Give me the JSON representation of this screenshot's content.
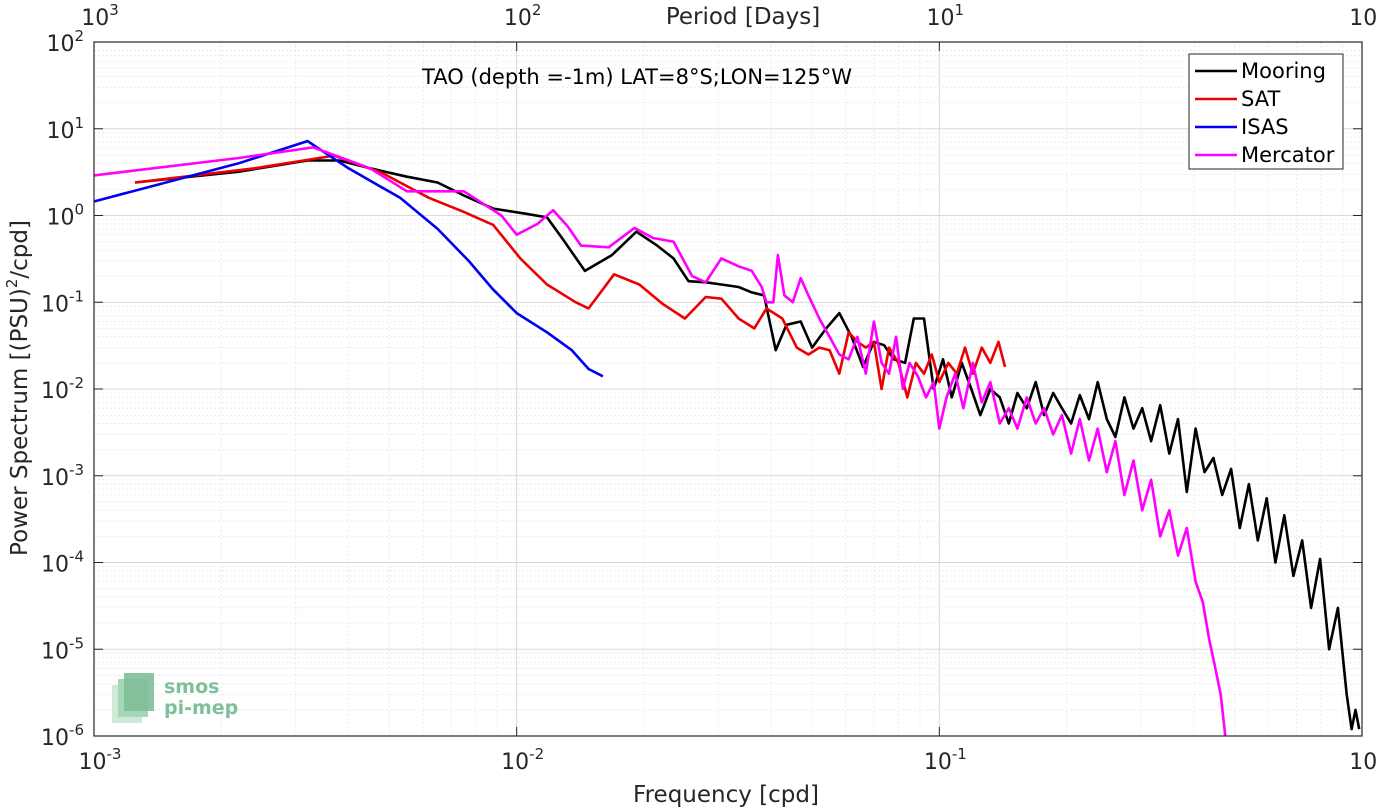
{
  "chart_data": {
    "type": "line",
    "title": "TAO (depth =-1m) LAT=8°S;LON=125°W",
    "xlabel": "Frequency [cpd]",
    "ylabel_main": "Power Spectrum [(PSU)",
    "ylabel_sup": "2",
    "ylabel_tail": "/cpd]",
    "top_xlabel": "Period [Days]",
    "x_scale": "log",
    "y_scale": "log",
    "xlim": [
      0.001,
      1
    ],
    "ylim": [
      1e-06,
      100
    ],
    "grid": true,
    "legend_position": "top-right",
    "x_ticks": [
      {
        "base": "10",
        "exp": "-3",
        "value": 0.001
      },
      {
        "base": "10",
        "exp": "-2",
        "value": 0.01
      },
      {
        "base": "10",
        "exp": "-1",
        "value": 0.1
      },
      {
        "base": "10",
        "exp": "0",
        "value": 1
      }
    ],
    "top_ticks": [
      {
        "base": "10",
        "exp": "3",
        "value": 0.001
      },
      {
        "base": "10",
        "exp": "2",
        "value": 0.01
      },
      {
        "base": "10",
        "exp": "1",
        "value": 0.1
      },
      {
        "base": "10",
        "exp": "0",
        "value": 1
      }
    ],
    "y_ticks": [
      {
        "base": "10",
        "exp": "2",
        "value": 100
      },
      {
        "base": "10",
        "exp": "1",
        "value": 10
      },
      {
        "base": "10",
        "exp": "0",
        "value": 1
      },
      {
        "base": "10",
        "exp": "-1",
        "value": 0.1
      },
      {
        "base": "10",
        "exp": "-2",
        "value": 0.01
      },
      {
        "base": "10",
        "exp": "-3",
        "value": 0.001
      },
      {
        "base": "10",
        "exp": "-4",
        "value": 0.0001
      },
      {
        "base": "10",
        "exp": "-5",
        "value": 1e-05
      },
      {
        "base": "10",
        "exp": "-6",
        "value": 1e-06
      }
    ],
    "series": [
      {
        "name": "Mooring",
        "color": "#000000",
        "points": [
          [
            0.00125,
            2.4
          ],
          [
            0.0022,
            3.2
          ],
          [
            0.0032,
            4.3
          ],
          [
            0.0038,
            4.3
          ],
          [
            0.0045,
            3.5
          ],
          [
            0.0055,
            2.8
          ],
          [
            0.0065,
            2.4
          ],
          [
            0.0075,
            1.7
          ],
          [
            0.0088,
            1.2
          ],
          [
            0.0105,
            1.05
          ],
          [
            0.0118,
            0.95
          ],
          [
            0.0128,
            0.55
          ],
          [
            0.0145,
            0.23
          ],
          [
            0.0168,
            0.35
          ],
          [
            0.0192,
            0.65
          ],
          [
            0.0215,
            0.45
          ],
          [
            0.0235,
            0.32
          ],
          [
            0.0255,
            0.175
          ],
          [
            0.028,
            0.17
          ],
          [
            0.0305,
            0.16
          ],
          [
            0.0335,
            0.15
          ],
          [
            0.036,
            0.13
          ],
          [
            0.0385,
            0.12
          ],
          [
            0.041,
            0.028
          ],
          [
            0.0435,
            0.055
          ],
          [
            0.047,
            0.06
          ],
          [
            0.05,
            0.03
          ],
          [
            0.054,
            0.05
          ],
          [
            0.058,
            0.075
          ],
          [
            0.062,
            0.04
          ],
          [
            0.066,
            0.018
          ],
          [
            0.07,
            0.035
          ],
          [
            0.074,
            0.032
          ],
          [
            0.078,
            0.022
          ],
          [
            0.083,
            0.02
          ],
          [
            0.087,
            0.065
          ],
          [
            0.092,
            0.065
          ],
          [
            0.097,
            0.01
          ],
          [
            0.102,
            0.022
          ],
          [
            0.107,
            0.008
          ],
          [
            0.113,
            0.02
          ],
          [
            0.119,
            0.01
          ],
          [
            0.125,
            0.005
          ],
          [
            0.132,
            0.01
          ],
          [
            0.139,
            0.008
          ],
          [
            0.146,
            0.004
          ],
          [
            0.153,
            0.009
          ],
          [
            0.161,
            0.006
          ],
          [
            0.169,
            0.012
          ],
          [
            0.177,
            0.005
          ],
          [
            0.186,
            0.009
          ],
          [
            0.195,
            0.006
          ],
          [
            0.205,
            0.004
          ],
          [
            0.215,
            0.0085
          ],
          [
            0.226,
            0.0045
          ],
          [
            0.237,
            0.012
          ],
          [
            0.249,
            0.0045
          ],
          [
            0.261,
            0.0028
          ],
          [
            0.274,
            0.008
          ],
          [
            0.288,
            0.0035
          ],
          [
            0.302,
            0.006
          ],
          [
            0.317,
            0.0025
          ],
          [
            0.333,
            0.0065
          ],
          [
            0.35,
            0.0018
          ],
          [
            0.367,
            0.0045
          ],
          [
            0.385,
            0.00065
          ],
          [
            0.404,
            0.0035
          ],
          [
            0.424,
            0.0011
          ],
          [
            0.445,
            0.0016
          ],
          [
            0.467,
            0.0006
          ],
          [
            0.49,
            0.0012
          ],
          [
            0.514,
            0.00025
          ],
          [
            0.54,
            0.0008
          ],
          [
            0.567,
            0.00018
          ],
          [
            0.595,
            0.00055
          ],
          [
            0.624,
            0.0001
          ],
          [
            0.655,
            0.00035
          ],
          [
            0.688,
            7e-05
          ],
          [
            0.722,
            0.00018
          ],
          [
            0.758,
            3e-05
          ],
          [
            0.796,
            0.00011
          ],
          [
            0.836,
            1e-05
          ],
          [
            0.877,
            3e-05
          ],
          [
            0.92,
            3e-06
          ],
          [
            0.945,
            1.2e-06
          ],
          [
            0.965,
            2e-06
          ],
          [
            0.985,
            1.2e-06
          ]
        ]
      },
      {
        "name": "SAT",
        "color": "#ee0000",
        "points": [
          [
            0.00125,
            2.4
          ],
          [
            0.0024,
            3.5
          ],
          [
            0.0037,
            4.9
          ],
          [
            0.0048,
            3.1
          ],
          [
            0.0062,
            1.6
          ],
          [
            0.0075,
            1.1
          ],
          [
            0.0088,
            0.78
          ],
          [
            0.0102,
            0.32
          ],
          [
            0.0118,
            0.16
          ],
          [
            0.0138,
            0.1
          ],
          [
            0.0148,
            0.085
          ],
          [
            0.017,
            0.21
          ],
          [
            0.0195,
            0.16
          ],
          [
            0.0222,
            0.095
          ],
          [
            0.025,
            0.065
          ],
          [
            0.028,
            0.115
          ],
          [
            0.0305,
            0.11
          ],
          [
            0.0335,
            0.065
          ],
          [
            0.0365,
            0.05
          ],
          [
            0.039,
            0.085
          ],
          [
            0.0425,
            0.065
          ],
          [
            0.046,
            0.03
          ],
          [
            0.049,
            0.025
          ],
          [
            0.052,
            0.03
          ],
          [
            0.055,
            0.028
          ],
          [
            0.058,
            0.015
          ],
          [
            0.061,
            0.045
          ],
          [
            0.064,
            0.035
          ],
          [
            0.067,
            0.03
          ],
          [
            0.07,
            0.035
          ],
          [
            0.073,
            0.01
          ],
          [
            0.076,
            0.03
          ],
          [
            0.08,
            0.02
          ],
          [
            0.084,
            0.008
          ],
          [
            0.088,
            0.02
          ],
          [
            0.092,
            0.015
          ],
          [
            0.096,
            0.025
          ],
          [
            0.1,
            0.012
          ],
          [
            0.105,
            0.02
          ],
          [
            0.11,
            0.015
          ],
          [
            0.115,
            0.03
          ],
          [
            0.12,
            0.015
          ],
          [
            0.126,
            0.03
          ],
          [
            0.132,
            0.02
          ],
          [
            0.138,
            0.035
          ],
          [
            0.143,
            0.018
          ]
        ]
      },
      {
        "name": "ISAS",
        "color": "#0000ee",
        "points": [
          [
            0.001,
            1.45
          ],
          [
            0.0022,
            4.0
          ],
          [
            0.0032,
            7.2
          ],
          [
            0.004,
            3.5
          ],
          [
            0.0053,
            1.6
          ],
          [
            0.0065,
            0.7
          ],
          [
            0.0077,
            0.3
          ],
          [
            0.0088,
            0.14
          ],
          [
            0.01,
            0.075
          ],
          [
            0.0118,
            0.045
          ],
          [
            0.0135,
            0.028
          ],
          [
            0.0148,
            0.017
          ],
          [
            0.016,
            0.014
          ]
        ]
      },
      {
        "name": "Mercator",
        "color": "#ff00ff",
        "points": [
          [
            0.001,
            2.9
          ],
          [
            0.0022,
            4.6
          ],
          [
            0.0033,
            6.1
          ],
          [
            0.0045,
            3.5
          ],
          [
            0.0055,
            1.9
          ],
          [
            0.0075,
            1.9
          ],
          [
            0.0092,
            1.0
          ],
          [
            0.01,
            0.6
          ],
          [
            0.0112,
            0.8
          ],
          [
            0.0122,
            1.15
          ],
          [
            0.0132,
            0.75
          ],
          [
            0.0142,
            0.45
          ],
          [
            0.0165,
            0.43
          ],
          [
            0.019,
            0.72
          ],
          [
            0.021,
            0.55
          ],
          [
            0.0235,
            0.5
          ],
          [
            0.026,
            0.2
          ],
          [
            0.028,
            0.17
          ],
          [
            0.0305,
            0.32
          ],
          [
            0.0335,
            0.26
          ],
          [
            0.036,
            0.23
          ],
          [
            0.038,
            0.15
          ],
          [
            0.039,
            0.1
          ],
          [
            0.0405,
            0.1
          ],
          [
            0.0415,
            0.35
          ],
          [
            0.043,
            0.12
          ],
          [
            0.045,
            0.1
          ],
          [
            0.047,
            0.19
          ],
          [
            0.049,
            0.12
          ],
          [
            0.052,
            0.065
          ],
          [
            0.055,
            0.04
          ],
          [
            0.058,
            0.025
          ],
          [
            0.061,
            0.022
          ],
          [
            0.064,
            0.04
          ],
          [
            0.067,
            0.015
          ],
          [
            0.07,
            0.06
          ],
          [
            0.073,
            0.02
          ],
          [
            0.076,
            0.015
          ],
          [
            0.079,
            0.04
          ],
          [
            0.082,
            0.01
          ],
          [
            0.085,
            0.02
          ],
          [
            0.089,
            0.014
          ],
          [
            0.093,
            0.008
          ],
          [
            0.097,
            0.012
          ],
          [
            0.1,
            0.0035
          ],
          [
            0.104,
            0.008
          ],
          [
            0.109,
            0.015
          ],
          [
            0.114,
            0.006
          ],
          [
            0.12,
            0.02
          ],
          [
            0.126,
            0.007
          ],
          [
            0.132,
            0.012
          ],
          [
            0.139,
            0.004
          ],
          [
            0.146,
            0.006
          ],
          [
            0.153,
            0.0035
          ],
          [
            0.161,
            0.008
          ],
          [
            0.169,
            0.004
          ],
          [
            0.177,
            0.006
          ],
          [
            0.186,
            0.003
          ],
          [
            0.195,
            0.005
          ],
          [
            0.205,
            0.0018
          ],
          [
            0.215,
            0.0045
          ],
          [
            0.226,
            0.0015
          ],
          [
            0.237,
            0.0035
          ],
          [
            0.249,
            0.0011
          ],
          [
            0.261,
            0.0025
          ],
          [
            0.274,
            0.0006
          ],
          [
            0.288,
            0.0015
          ],
          [
            0.302,
            0.0004
          ],
          [
            0.317,
            0.0009
          ],
          [
            0.333,
            0.0002
          ],
          [
            0.35,
            0.0004
          ],
          [
            0.367,
            0.00012
          ],
          [
            0.385,
            0.00025
          ],
          [
            0.404,
            6e-05
          ],
          [
            0.42,
            3.5e-05
          ],
          [
            0.435,
            1.3e-05
          ],
          [
            0.45,
            6e-06
          ],
          [
            0.463,
            3e-06
          ],
          [
            0.475,
            1e-06
          ]
        ]
      }
    ]
  },
  "logo": {
    "line1": "smos",
    "line2": "pi-mep"
  }
}
